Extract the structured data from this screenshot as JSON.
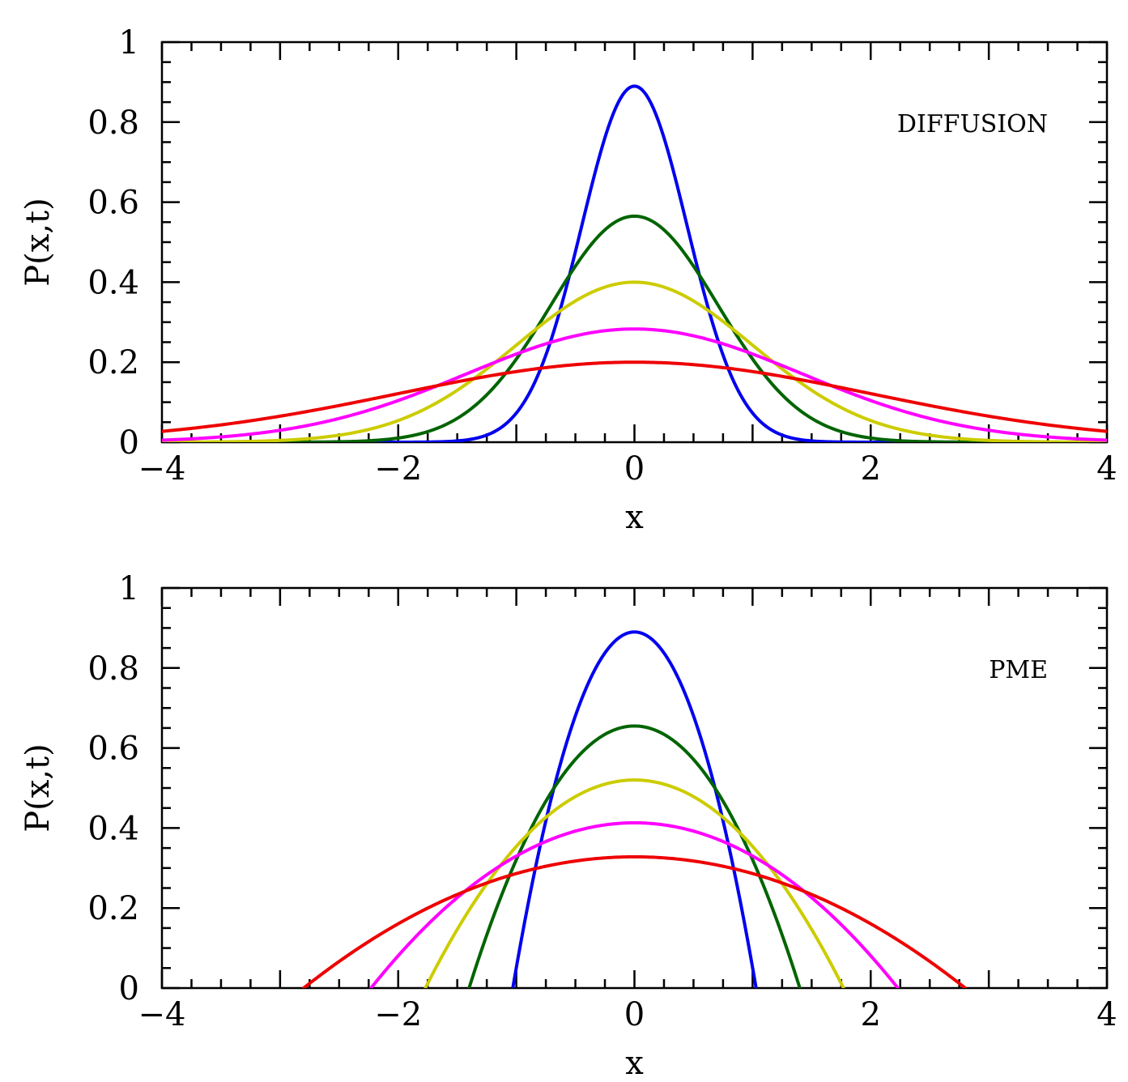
{
  "chart_data": [
    {
      "type": "line",
      "annotation": "DIFFUSION",
      "xlabel": "x",
      "ylabel": "P(x,t)",
      "xlim": [
        -4,
        4
      ],
      "ylim": [
        0,
        1
      ],
      "xticks": [
        -4,
        -2,
        0,
        2,
        4
      ],
      "xtick_labels": [
        "−4",
        "−2",
        "0",
        "2",
        "4"
      ],
      "yticks": [
        0,
        0.2,
        0.4,
        0.6,
        0.8,
        1
      ],
      "ytick_labels": [
        "0",
        "0.2",
        "0.4",
        "0.6",
        "0.8",
        "1"
      ],
      "grid": false,
      "model": "gaussian",
      "series": [
        {
          "color": "#0000ee",
          "peak": 0.89,
          "width": 0.632
        },
        {
          "color": "#006400",
          "peak": 0.565,
          "width": 1.0
        },
        {
          "color": "#cccc00",
          "peak": 0.4,
          "width": 1.414
        },
        {
          "color": "#ff00ff",
          "peak": 0.283,
          "width": 2.0
        },
        {
          "color": "#ee0000",
          "peak": 0.2,
          "width": 2.83
        }
      ]
    },
    {
      "type": "line",
      "annotation": "PME",
      "xlabel": "x",
      "ylabel": "P(x,t)",
      "xlim": [
        -4,
        4
      ],
      "ylim": [
        0,
        1
      ],
      "xticks": [
        -4,
        -2,
        0,
        2,
        4
      ],
      "xtick_labels": [
        "−4",
        "−2",
        "0",
        "2",
        "4"
      ],
      "yticks": [
        0,
        0.2,
        0.4,
        0.6,
        0.8,
        1
      ],
      "ytick_labels": [
        "0",
        "0.2",
        "0.4",
        "0.6",
        "0.8",
        "1"
      ],
      "grid": false,
      "model": "parabola",
      "series": [
        {
          "color": "#0000ee",
          "peak": 0.89,
          "support": 1.03
        },
        {
          "color": "#006400",
          "peak": 0.655,
          "support": 1.4
        },
        {
          "color": "#cccc00",
          "peak": 0.52,
          "support": 1.77
        },
        {
          "color": "#ff00ff",
          "peak": 0.413,
          "support": 2.23
        },
        {
          "color": "#ee0000",
          "peak": 0.328,
          "support": 2.8
        }
      ]
    }
  ]
}
